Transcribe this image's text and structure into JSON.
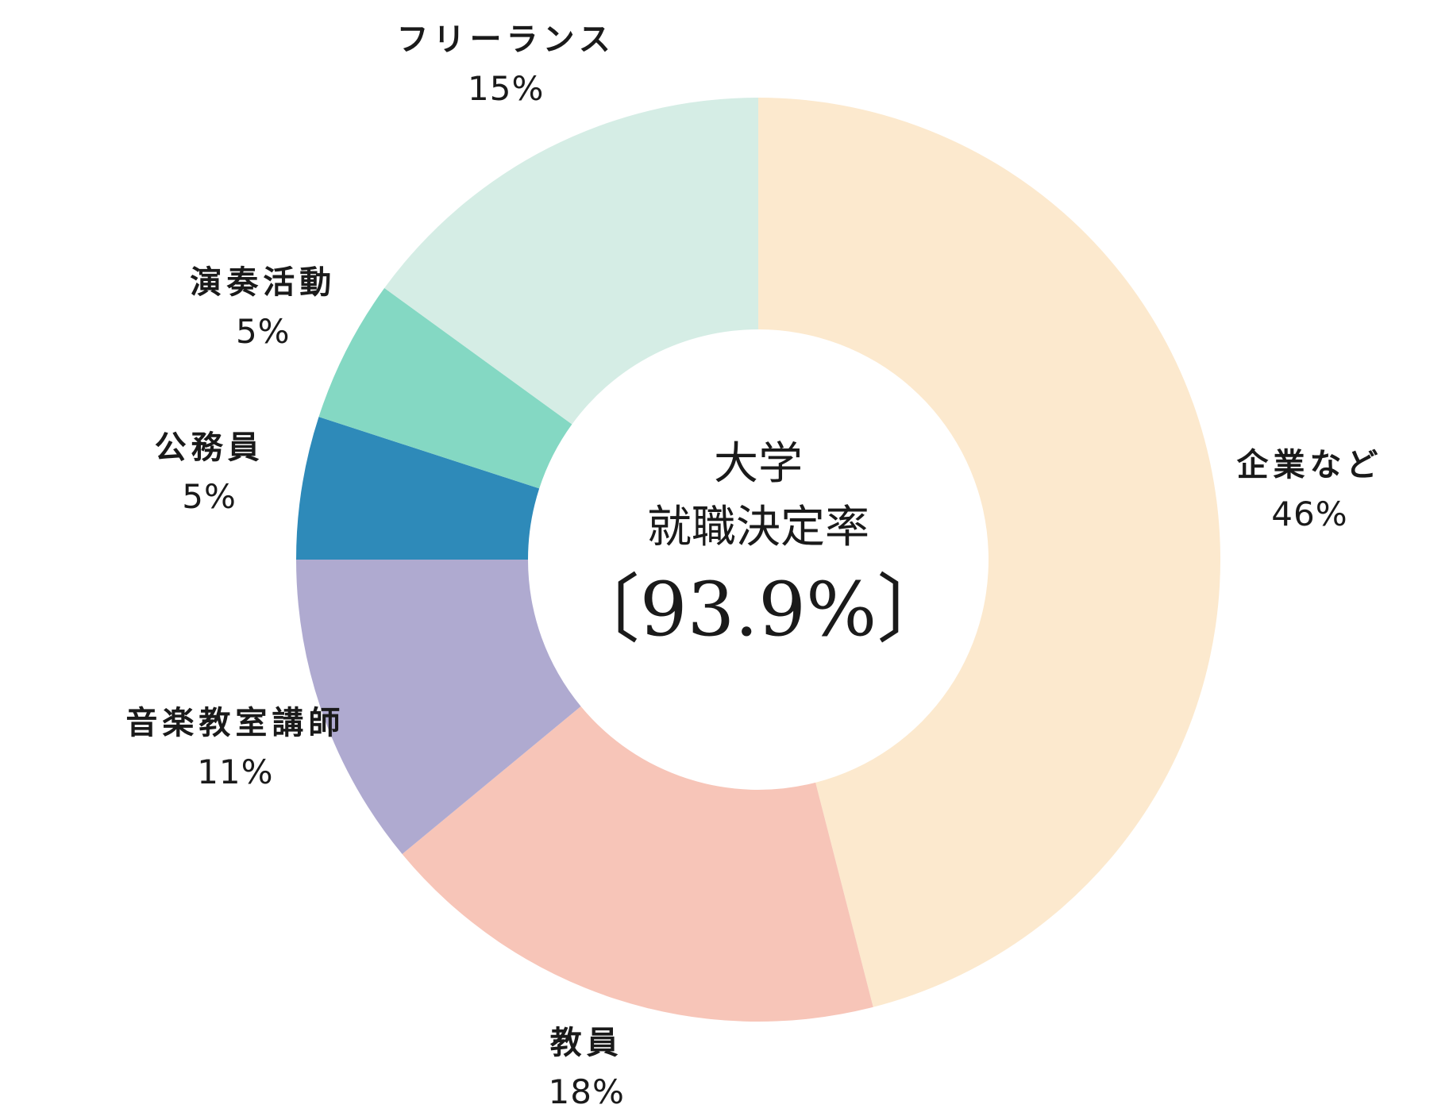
{
  "chart_data": {
    "type": "pie",
    "categories": [
      "企業など",
      "教員",
      "音楽教室講師",
      "公務員",
      "演奏活動",
      "フリーランス"
    ],
    "values": [
      46,
      18,
      11,
      5,
      5,
      15
    ],
    "value_labels": [
      "46%",
      "18%",
      "11%",
      "5%",
      "5%",
      "15%"
    ],
    "colors": [
      "#fce9ce",
      "#f7c5b8",
      "#afaad0",
      "#2e8ab9",
      "#84d8c3",
      "#d5ede5"
    ],
    "start": "12 o'clock, clockwise",
    "donut": true,
    "center_text": {
      "line1": "大学",
      "line2": "就職決定率",
      "rate": "〔93.9%〕"
    }
  }
}
